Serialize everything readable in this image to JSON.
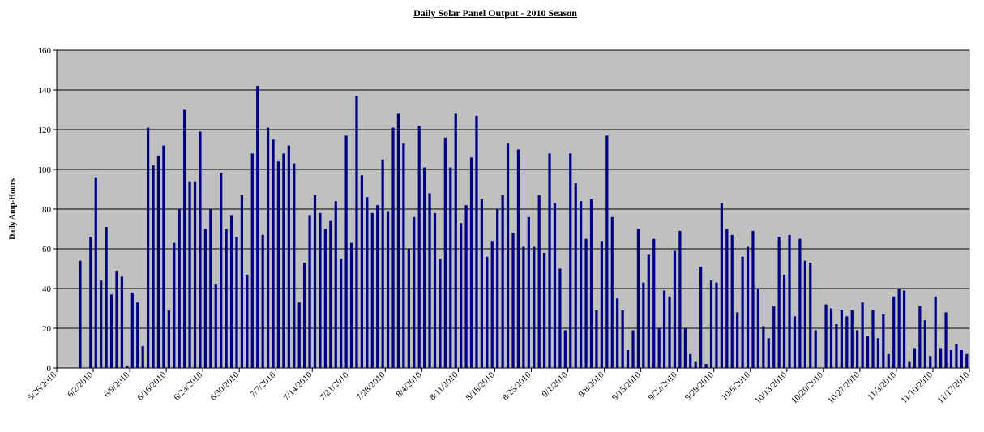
{
  "chart_data": {
    "type": "bar",
    "title": "Daily Solar Panel Output - 2010 Season",
    "xlabel": "",
    "ylabel": "Daily Amp-Hours",
    "ylim": [
      0,
      160
    ],
    "yticks": [
      0,
      20,
      40,
      60,
      80,
      100,
      120,
      140,
      160
    ],
    "grid": true,
    "legend": "none",
    "start_date": "5/26/2010",
    "x_tick_labels": [
      "5/26/2010",
      "6/2/2010",
      "6/9/2010",
      "6/16/2010",
      "6/23/2010",
      "6/30/2010",
      "7/7/2010",
      "7/14/2010",
      "7/21/2010",
      "7/28/2010",
      "8/4/2010",
      "8/11/2010",
      "8/18/2010",
      "8/25/2010",
      "9/1/2010",
      "9/8/2010",
      "9/15/2010",
      "9/22/2010",
      "9/29/2010",
      "10/6/2010",
      "10/13/2010",
      "10/20/2010",
      "10/27/2010",
      "11/3/2010",
      "11/10/2010",
      "11/17/2010"
    ],
    "values": [
      0,
      0,
      0,
      0,
      54,
      0,
      66,
      96,
      44,
      71,
      37,
      49,
      46,
      1,
      38,
      33,
      11,
      121,
      102,
      107,
      112,
      29,
      63,
      80,
      130,
      94,
      94,
      119,
      70,
      80,
      42,
      98,
      70,
      77,
      66,
      87,
      47,
      108,
      142,
      67,
      121,
      115,
      104,
      108,
      112,
      103,
      33,
      53,
      77,
      87,
      78,
      70,
      74,
      84,
      55,
      117,
      63,
      137,
      97,
      86,
      78,
      82,
      105,
      79,
      121,
      128,
      113,
      60,
      76,
      122,
      101,
      88,
      78,
      55,
      116,
      101,
      128,
      73,
      82,
      106,
      127,
      85,
      56,
      64,
      80,
      87,
      113,
      68,
      110,
      61,
      76,
      61,
      87,
      58,
      108,
      83,
      50,
      19,
      108,
      93,
      84,
      65,
      85,
      29,
      64,
      117,
      76,
      35,
      29,
      9,
      19,
      70,
      43,
      57,
      65,
      20,
      39,
      36,
      59,
      69,
      20,
      7,
      3,
      51,
      2,
      44,
      43,
      83,
      70,
      67,
      28,
      56,
      61,
      69,
      40,
      21,
      15,
      31,
      66,
      47,
      67,
      26,
      65,
      54,
      53,
      19,
      0,
      32,
      30,
      22,
      29,
      26,
      29,
      19,
      33,
      16,
      29,
      15,
      27,
      7,
      36,
      40,
      39,
      3,
      10,
      31,
      24,
      6,
      36,
      10,
      28,
      9,
      12,
      9,
      7
    ],
    "colors": {
      "bar": "#000080",
      "plot_bg": "#C0C0C0",
      "grid": "#000000"
    }
  }
}
